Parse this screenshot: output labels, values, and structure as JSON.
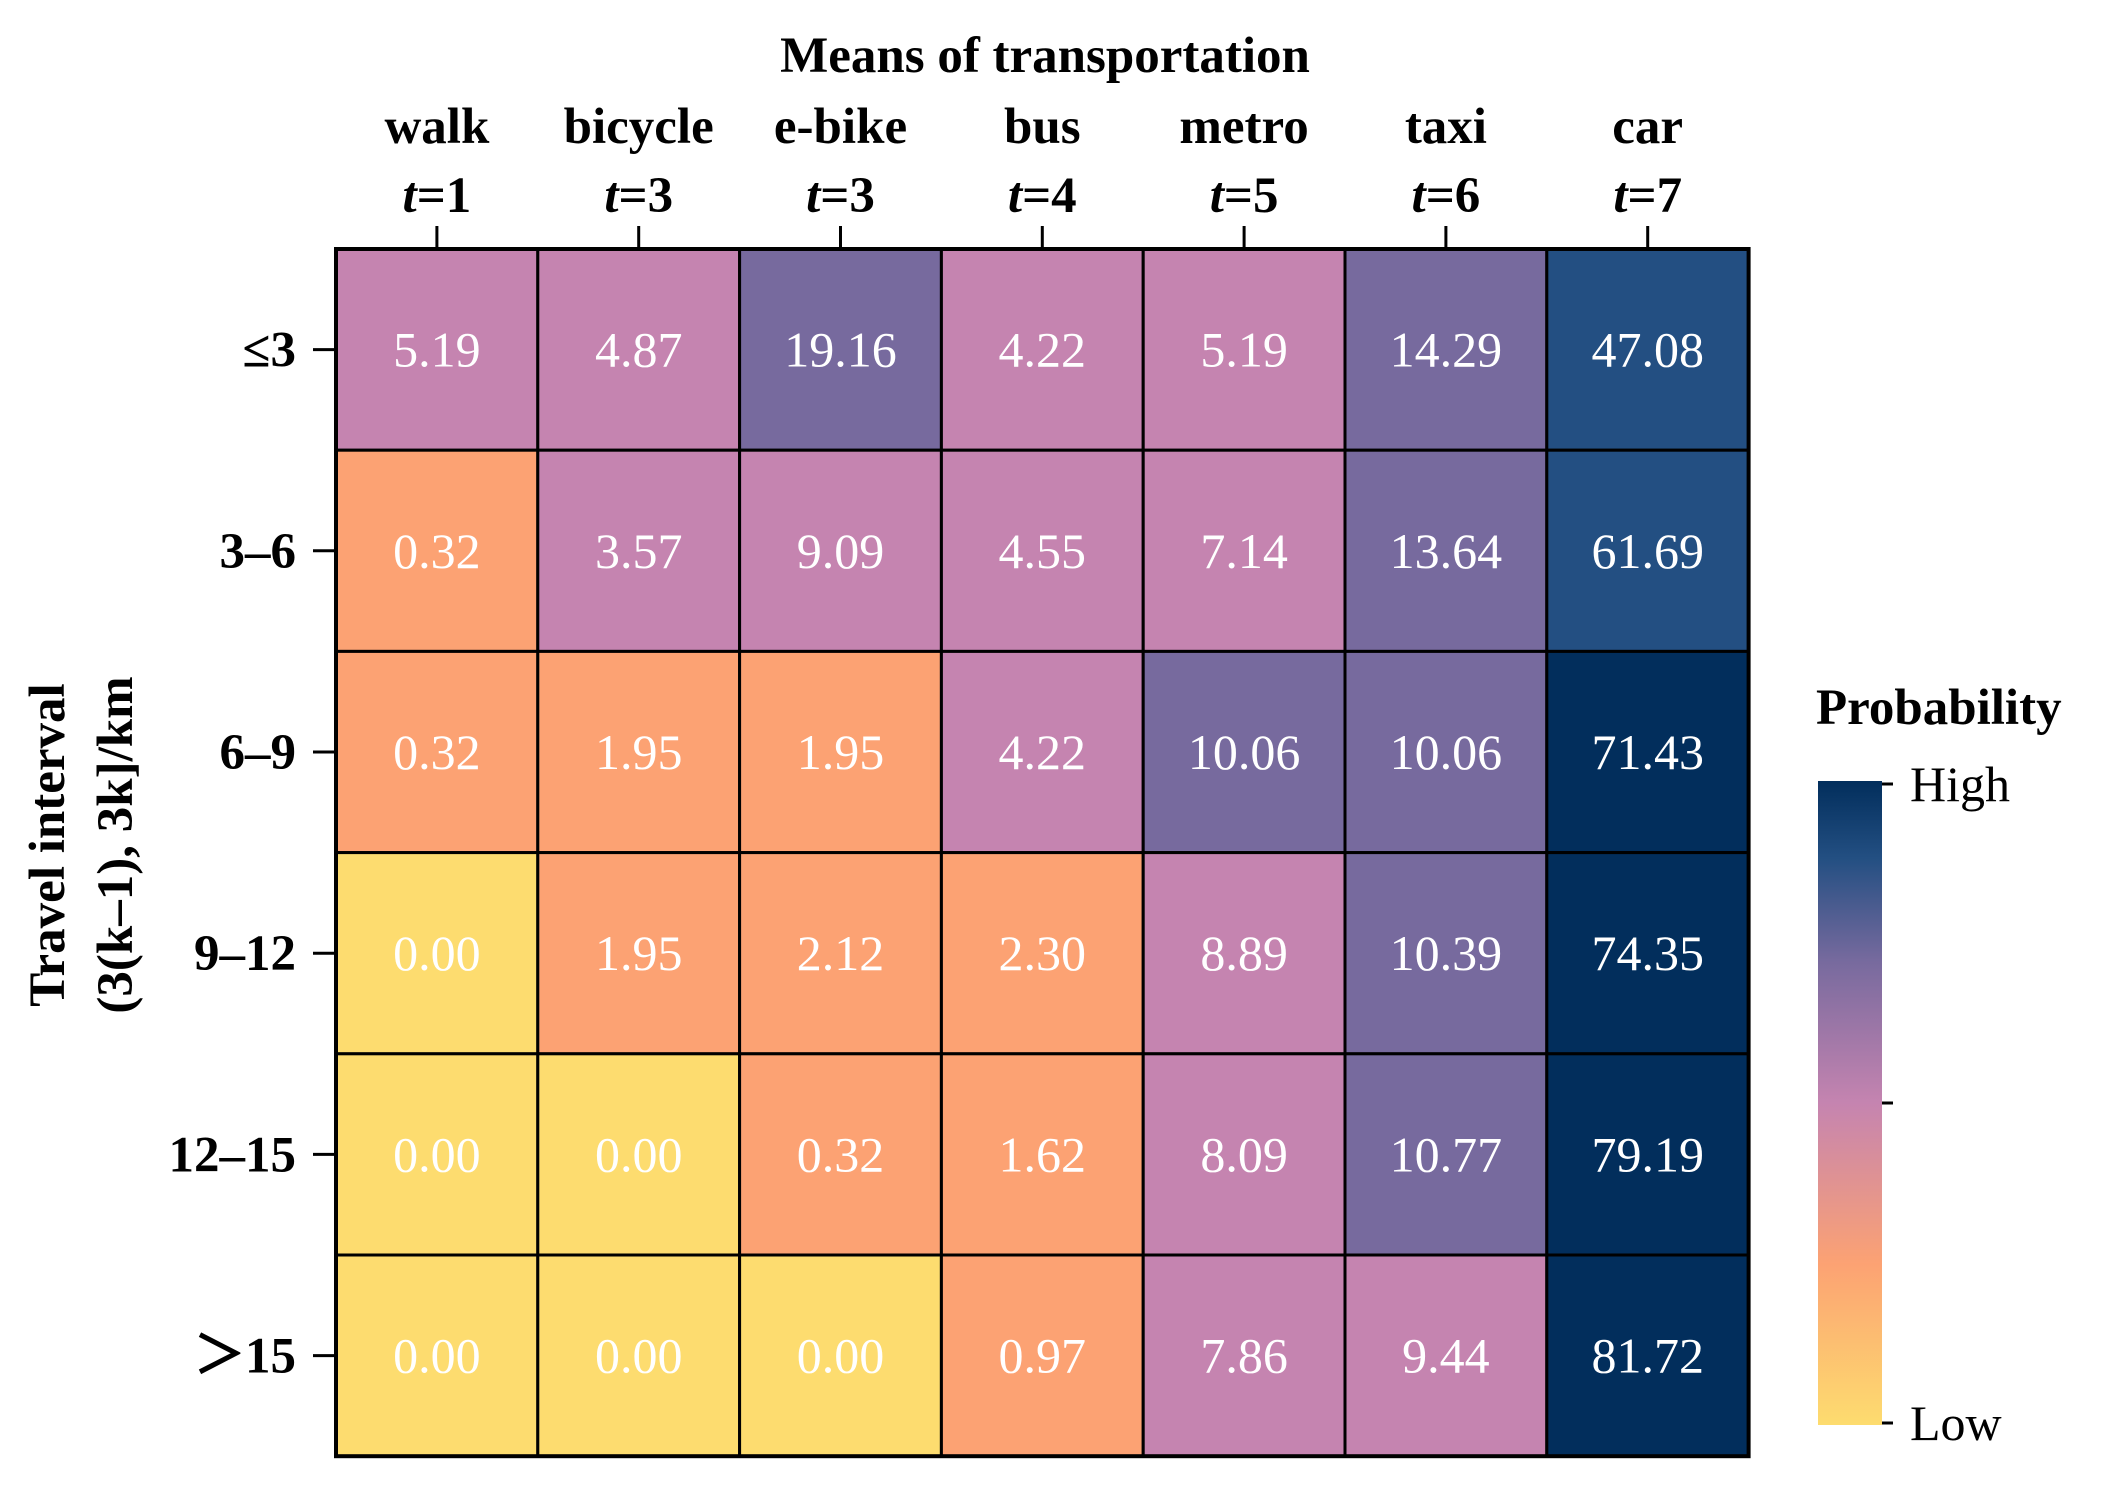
{
  "chart_data": {
    "type": "heatmap",
    "title": "Means of transportation",
    "xlabel": "Means of transportation",
    "ylabel_lines": [
      "Travel interval",
      "(3(k–1), 3k]/km"
    ],
    "columns": [
      {
        "mode": "walk",
        "t": "1"
      },
      {
        "mode": "bicycle",
        "t": "3"
      },
      {
        "mode": "e-bike",
        "t": "3"
      },
      {
        "mode": "bus",
        "t": "4"
      },
      {
        "mode": "metro",
        "t": "5"
      },
      {
        "mode": "taxi",
        "t": "6"
      },
      {
        "mode": "car",
        "t": "7"
      }
    ],
    "rows": [
      "≤3",
      "3–6",
      "6–9",
      "9–12",
      "12–15",
      "＞15"
    ],
    "values": [
      [
        5.19,
        4.87,
        19.16,
        4.22,
        5.19,
        14.29,
        47.08
      ],
      [
        0.32,
        3.57,
        9.09,
        4.55,
        7.14,
        13.64,
        61.69
      ],
      [
        0.32,
        1.95,
        1.95,
        4.22,
        10.06,
        10.06,
        71.43
      ],
      [
        0.0,
        1.95,
        2.12,
        2.3,
        8.89,
        10.39,
        74.35
      ],
      [
        0.0,
        0.0,
        0.32,
        1.62,
        8.09,
        10.77,
        79.19
      ],
      [
        0.0,
        0.0,
        0.0,
        0.97,
        7.86,
        9.44,
        81.72
      ]
    ],
    "value_labels": [
      [
        "5.19",
        "4.87",
        "19.16",
        "4.22",
        "5.19",
        "14.29",
        "47.08"
      ],
      [
        "0.32",
        "3.57",
        "9.09",
        "4.55",
        "7.14",
        "13.64",
        "61.69"
      ],
      [
        "0.32",
        "1.95",
        "1.95",
        "4.22",
        "10.06",
        "10.06",
        "71.43"
      ],
      [
        "0.00",
        "1.95",
        "2.12",
        "2.30",
        "8.89",
        "10.39",
        "74.35"
      ],
      [
        "0.00",
        "0.00",
        "0.32",
        "1.62",
        "8.09",
        "10.77",
        "79.19"
      ],
      [
        "0.00",
        "0.00",
        "0.00",
        "0.97",
        "7.86",
        "9.44",
        "81.72"
      ]
    ],
    "colorbar": {
      "title": "Probability",
      "high_label": "High",
      "low_label": "Low",
      "stops": [
        "#fddc6f",
        "#fca273",
        "#c584b0",
        "#776a9e",
        "#234f82",
        "#022e5c"
      ]
    },
    "thresholds": [
      {
        "min": 0,
        "max": 0.01,
        "color": "#fddc6f"
      },
      {
        "min": 0.01,
        "max": 3.0,
        "color": "#fca273"
      },
      {
        "min": 3.0,
        "max": 9.5,
        "color": "#c584b0"
      },
      {
        "min": 9.5,
        "max": 20.0,
        "color": "#776a9e"
      },
      {
        "min": 20.0,
        "max": 65.0,
        "color": "#234f82"
      },
      {
        "min": 65.0,
        "max": 100.0,
        "color": "#022e5c"
      }
    ]
  }
}
